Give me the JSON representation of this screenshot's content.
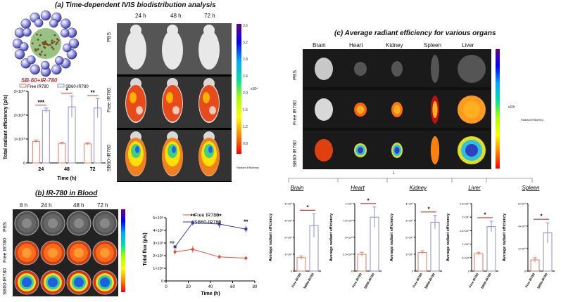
{
  "panel_a": {
    "title": "(a) Time-dependent IVIS biodistribution analysis",
    "nano_label": "SB-60+IR-780",
    "time_labels": [
      "24 h",
      "48 h",
      "72 h"
    ],
    "row_labels": [
      "PBS",
      "Free IR780",
      "SB60-IR780"
    ],
    "colorbar_ticks": [
      "3.6",
      "3.2",
      "2.8",
      "2.4",
      "2.0",
      "1.6",
      "1.2",
      "0.8"
    ],
    "colorbar_exp": "x10⁹",
    "colorbar_caption": "Radiant Efficiency",
    "colors": {
      "free": "#e07a5f",
      "sb60": "#8c8cd6",
      "sig_line": "#c0392b"
    }
  },
  "panel_b": {
    "title": "(b) IR-780 in Blood",
    "time_labels": [
      "8 h",
      "24 h",
      "48 h",
      "72 h"
    ],
    "row_labels": [
      "PBS",
      "Free IR780",
      "SB60-IR780"
    ]
  },
  "panel_c": {
    "title": "(c) Average radiant efficiency for various organs",
    "organ_labels": [
      "Brain",
      "Heart",
      "Kidney",
      "Spleen",
      "Liver"
    ],
    "row_labels": [
      "PBS",
      "Free IR780",
      "SB60-IR780"
    ],
    "colorbar_exp": "x10⁸",
    "colorbar_caption": "Radiant Efficiency",
    "arrow": "↓"
  },
  "chart_data": [
    {
      "id": "a-bar",
      "type": "bar",
      "title": "",
      "xlabel": "Time (h)",
      "ylabel": "Total radiant efficiency (p/s)",
      "categories": [
        "24",
        "48",
        "72"
      ],
      "yticks": [
        0,
        10000000000.0,
        20000000000.0,
        30000000000.0
      ],
      "ytick_labels": [
        "0",
        "1×10¹⁰",
        "2×10¹⁰",
        "3×10¹⁰"
      ],
      "ylim": [
        0,
        30000000000.0
      ],
      "series": [
        {
          "name": "Free IR780",
          "values": [
            9000000000.0,
            8200000000.0,
            8000000000.0
          ],
          "errors": [
            600000000.0,
            400000000.0,
            500000000.0
          ]
        },
        {
          "name": "SB60-IR780",
          "values": [
            22000000000.0,
            23500000000.0,
            23000000000.0
          ],
          "errors": [
            1000000000.0,
            4500000000.0,
            4000000000.0
          ]
        }
      ],
      "significance": [
        "***",
        "*",
        "**"
      ],
      "legend": "top"
    },
    {
      "id": "b-line",
      "type": "line",
      "xlabel": "Time (h)",
      "ylabel": "Total flux (p/s)",
      "x": [
        8,
        24,
        48,
        72
      ],
      "xticks": [
        0,
        20,
        40,
        60,
        80
      ],
      "xlim": [
        0,
        80
      ],
      "yticks": [
        0,
        1000000000.0,
        2000000000.0,
        3000000000.0,
        4000000000.0,
        5000000000.0
      ],
      "ytick_labels": [
        "0",
        "1×10⁹",
        "2×10⁹",
        "3×10⁹",
        "4×10⁹",
        "5×10⁹"
      ],
      "ylim": [
        0,
        5000000000.0
      ],
      "series": [
        {
          "name": "Free IR780",
          "color": "#e0503a",
          "values": [
            2300000000.0,
            2500000000.0,
            1900000000.0,
            1800000000.0
          ],
          "errors": [
            200000000.0,
            250000000.0,
            150000000.0,
            150000000.0
          ]
        },
        {
          "name": "SB60-IR780",
          "color": "#3a3aa8",
          "values": [
            2700000000.0,
            4600000000.0,
            4500000000.0,
            4100000000.0
          ],
          "errors": [
            100000000.0,
            200000000.0,
            300000000.0,
            250000000.0
          ]
        }
      ],
      "significance": [
        "ns",
        "**",
        "**",
        "**"
      ],
      "legend": "top-right"
    },
    {
      "id": "c-brain",
      "type": "bar",
      "title": "Brain",
      "ylabel": "Average radiant efficiency",
      "categories": [
        "Free IR780",
        "SB60-IR780"
      ],
      "values": [
        800000000.0,
        2700000000.0
      ],
      "errors": [
        100000000.0,
        700000000.0
      ],
      "yticks": [
        0,
        1000000000.0,
        2000000000.0,
        3000000000.0,
        4000000000.0
      ],
      "ytick_labels": [
        "0",
        "1×10⁹",
        "2×10⁹",
        "3×10⁹",
        "4×10⁹"
      ],
      "ylim": [
        0,
        4000000000.0
      ],
      "significance": "*"
    },
    {
      "id": "c-heart",
      "type": "bar",
      "title": "Heart",
      "ylabel": "Average radiant efficiency",
      "categories": [
        "Free IR780",
        "SB60-IR780"
      ],
      "values": [
        250000000.0,
        800000000.0
      ],
      "errors": [
        30000000.0,
        150000000.0
      ],
      "yticks": [
        0,
        250000000.0,
        500000000.0,
        750000000.0,
        1000000000.0
      ],
      "ytick_labels": [
        "0",
        "2.5×10⁸",
        "5×10⁸",
        "7.5×10⁸",
        "1×10⁹"
      ],
      "ylim": [
        0,
        1000000000.0
      ],
      "significance": "*"
    },
    {
      "id": "c-kidney",
      "type": "bar",
      "title": "Kidney",
      "ylabel": "Average radiant efficiency",
      "categories": [
        "Free IR780",
        "SB60-IR780"
      ],
      "values": [
        1100000000.0,
        2900000000.0
      ],
      "errors": [
        100000000.0,
        400000000.0
      ],
      "yticks": [
        0,
        1000000000.0,
        2000000000.0,
        3000000000.0,
        4000000000.0
      ],
      "ytick_labels": [
        "0",
        "1×10⁹",
        "2×10⁹",
        "3×10⁹",
        "4×10⁹"
      ],
      "ylim": [
        0,
        4000000000.0
      ],
      "significance": "*"
    },
    {
      "id": "c-liver",
      "type": "bar",
      "title": "Liver",
      "ylabel": "Average radiant efficiency",
      "categories": [
        "Free IR780",
        "SB60-IR780"
      ],
      "values": [
        650000000.0,
        1650000000.0
      ],
      "errors": [
        50000000.0,
        200000000.0
      ],
      "yticks": [
        0,
        500000000.0,
        1000000000.0,
        1500000000.0,
        2000000000.0,
        2500000000.0
      ],
      "ytick_labels": [
        "0",
        "5×10⁸",
        "1×10⁹",
        "1.5×10⁹",
        "2×10⁹",
        "2.5×10⁹"
      ],
      "ylim": [
        0,
        2500000000.0
      ],
      "significance": "*"
    },
    {
      "id": "c-spleen",
      "type": "bar",
      "title": "Spleen",
      "ylabel": "Average radiant efficiency",
      "categories": [
        "Free IR780",
        "SB60-IR780"
      ],
      "values": [
        1000000000.0,
        3400000000.0
      ],
      "errors": [
        200000000.0,
        900000000.0
      ],
      "yticks": [
        0,
        2000000000.0,
        4000000000.0,
        6000000000.0
      ],
      "ytick_labels": [
        "0",
        "2×10⁹",
        "4×10⁹",
        "6×10⁹"
      ],
      "ylim": [
        0,
        6000000000.0
      ],
      "significance": "*"
    }
  ]
}
